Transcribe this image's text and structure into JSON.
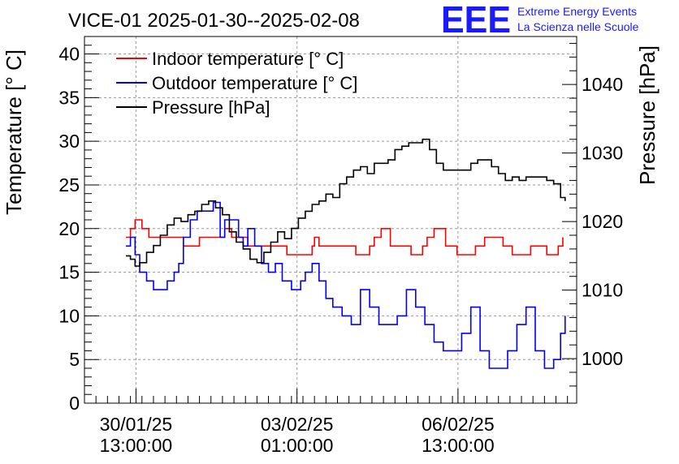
{
  "logo": {
    "letters": "EEE",
    "line1": "Extreme Energy Events",
    "line2": "La Scienza nelle Scuole",
    "color": "#1a1aff"
  },
  "chart_data": {
    "type": "line",
    "title": "VICE-01 2025-01-30--2025-02-08",
    "ylabel": "Temperature [° C]",
    "y2label": "Pressure [hPa]",
    "ylim": [
      0,
      42
    ],
    "y2lim": [
      993.5,
      1047
    ],
    "yticks": [
      "0",
      "5",
      "10",
      "15",
      "20",
      "25",
      "30",
      "35",
      "40"
    ],
    "y2ticks": [
      "1000",
      "1010",
      "1020",
      "1030",
      "1040"
    ],
    "xlim": [
      0,
      10.7
    ],
    "xticks": [
      {
        "x": 1.12,
        "line1": "30/01/25",
        "line2": "13:00:00"
      },
      {
        "x": 4.62,
        "line1": "03/02/25",
        "line2": "01:00:00"
      },
      {
        "x": 8.12,
        "line1": "06/02/25",
        "line2": "13:00:00"
      }
    ],
    "grid": true,
    "legend": [
      "Indoor temperature [° C]",
      "Outdoor temperature [° C]",
      "Pressure [hPa]"
    ],
    "series": [
      {
        "name": "Indoor temperature [° C]",
        "axis": "left",
        "color": "#ff0000",
        "x": [
          0.9,
          1.0,
          1.1,
          1.25,
          1.4,
          1.6,
          1.8,
          2.0,
          2.15,
          2.3,
          2.5,
          2.7,
          2.9,
          3.05,
          3.2,
          3.4,
          3.55,
          3.75,
          4.0,
          4.2,
          4.4,
          4.6,
          4.8,
          4.95,
          5.0,
          5.1,
          5.2,
          5.35,
          5.5,
          5.7,
          5.9,
          6.05,
          6.2,
          6.3,
          6.45,
          6.65,
          6.9,
          7.1,
          7.25,
          7.35,
          7.45,
          7.6,
          7.85,
          8.1,
          8.3,
          8.5,
          8.7,
          8.9,
          9.1,
          9.3,
          9.5,
          9.7,
          9.9,
          10.05,
          10.2,
          10.3,
          10.4
        ],
        "values": [
          19,
          20,
          21,
          20,
          19,
          19,
          19,
          19,
          18,
          18,
          19,
          19,
          19,
          20,
          19,
          19,
          18,
          18,
          18,
          18,
          17,
          17,
          17,
          18,
          19,
          18,
          18,
          18,
          18,
          18,
          17,
          17,
          18,
          19,
          20,
          18,
          18,
          17,
          17,
          18,
          19,
          20,
          18,
          17,
          17,
          18,
          19,
          19,
          18,
          17,
          17,
          18,
          18,
          17,
          17,
          18,
          19
        ]
      },
      {
        "name": "Outdoor temperature [° C]",
        "axis": "left",
        "color": "#0000ff",
        "x": [
          0.9,
          1.0,
          1.1,
          1.2,
          1.35,
          1.5,
          1.65,
          1.8,
          1.95,
          2.05,
          2.15,
          2.3,
          2.45,
          2.6,
          2.8,
          2.95,
          3.05,
          3.2,
          3.35,
          3.45,
          3.55,
          3.7,
          3.85,
          4.0,
          4.15,
          4.3,
          4.5,
          4.7,
          4.8,
          4.95,
          5.1,
          5.25,
          5.4,
          5.6,
          5.8,
          6.0,
          6.2,
          6.4,
          6.6,
          6.8,
          7.0,
          7.2,
          7.4,
          7.6,
          7.8,
          8.0,
          8.2,
          8.4,
          8.6,
          8.8,
          9.0,
          9.2,
          9.4,
          9.6,
          9.8,
          10.0,
          10.2,
          10.35,
          10.45
        ],
        "values": [
          18,
          19,
          17,
          15,
          14,
          13,
          13,
          14,
          15,
          16,
          19,
          21,
          22,
          22,
          23,
          19,
          21,
          21,
          19,
          18,
          20,
          18,
          16,
          15,
          16,
          14,
          13,
          14,
          15,
          16,
          14,
          12,
          11,
          10,
          9,
          13,
          11,
          9,
          9,
          10,
          13,
          11,
          9,
          7,
          6,
          6,
          8,
          11,
          6,
          4,
          4,
          6,
          9,
          11,
          6,
          4,
          5,
          8,
          10
        ]
      },
      {
        "name": "Pressure [hPa]",
        "axis": "right",
        "color": "#000000",
        "x": [
          0.9,
          1.0,
          1.1,
          1.2,
          1.35,
          1.5,
          1.65,
          1.8,
          1.95,
          2.1,
          2.25,
          2.4,
          2.55,
          2.7,
          2.85,
          3.0,
          3.15,
          3.3,
          3.45,
          3.6,
          3.75,
          3.9,
          4.05,
          4.2,
          4.35,
          4.5,
          4.65,
          4.8,
          4.95,
          5.1,
          5.25,
          5.4,
          5.55,
          5.7,
          5.85,
          6.0,
          6.15,
          6.3,
          6.45,
          6.6,
          6.75,
          6.9,
          7.05,
          7.2,
          7.35,
          7.5,
          7.65,
          7.8,
          7.95,
          8.1,
          8.25,
          8.4,
          8.55,
          8.7,
          8.85,
          9.0,
          9.15,
          9.3,
          9.45,
          9.6,
          9.75,
          9.9,
          10.05,
          10.2,
          10.35,
          10.45
        ],
        "values": [
          1015.0,
          1014.5,
          1013.5,
          1014.0,
          1015.5,
          1016.5,
          1018.0,
          1019.5,
          1020.5,
          1020.0,
          1021.0,
          1021.5,
          1022.5,
          1023.0,
          1022.0,
          1021.0,
          1018.5,
          1017.0,
          1016.0,
          1014.5,
          1014.0,
          1015.5,
          1017.0,
          1018.5,
          1017.5,
          1019.0,
          1020.5,
          1021.5,
          1022.5,
          1023.0,
          1024.0,
          1023.5,
          1025.5,
          1026.5,
          1027.5,
          1028.0,
          1027.0,
          1028.5,
          1028.5,
          1029.0,
          1030.5,
          1031.0,
          1031.5,
          1031.5,
          1032.0,
          1030.5,
          1028.5,
          1027.5,
          1027.5,
          1027.5,
          1027.5,
          1028.5,
          1029.0,
          1029.0,
          1028.0,
          1027.0,
          1026.0,
          1026.5,
          1026.0,
          1026.5,
          1026.5,
          1026.5,
          1026.0,
          1025.5,
          1023.5,
          1023.0
        ]
      }
    ]
  }
}
